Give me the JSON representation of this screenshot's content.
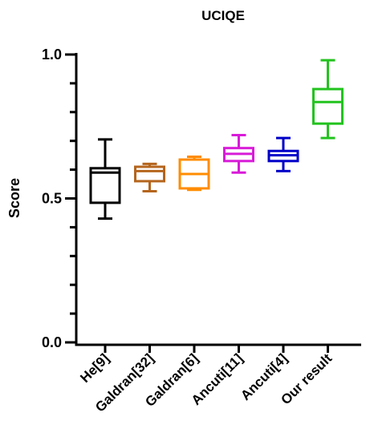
{
  "chart_data": {
    "type": "boxplot",
    "title": "UCIQE",
    "ylabel": "Score",
    "xlabel": "",
    "ylim": [
      0.0,
      1.0
    ],
    "yticks": [
      {
        "value": 0.0,
        "label": "0.0"
      },
      {
        "value": 0.5,
        "label": "0.5"
      },
      {
        "value": 1.0,
        "label": "1.0"
      }
    ],
    "y_minor_step": 0.1,
    "series": [
      {
        "category": "He[9]",
        "color": "#000000",
        "min": 0.43,
        "q1": 0.485,
        "median": 0.59,
        "q3": 0.605,
        "max": 0.705
      },
      {
        "category": "Galdran[32]",
        "color": "#b5651d",
        "min": 0.525,
        "q1": 0.56,
        "median": 0.595,
        "q3": 0.61,
        "max": 0.62
      },
      {
        "category": "Galdran[6]",
        "color": "#ff8c00",
        "min": 0.53,
        "q1": 0.535,
        "median": 0.585,
        "q3": 0.635,
        "max": 0.645
      },
      {
        "category": "Ancuti[11]",
        "color": "#d81bd8",
        "min": 0.59,
        "q1": 0.63,
        "median": 0.655,
        "q3": 0.675,
        "max": 0.72
      },
      {
        "category": "Ancuti[4]",
        "color": "#0000c8",
        "min": 0.595,
        "q1": 0.63,
        "median": 0.65,
        "q3": 0.665,
        "max": 0.71
      },
      {
        "category": "Our result",
        "color": "#22c31e",
        "min": 0.71,
        "q1": 0.76,
        "median": 0.835,
        "q3": 0.88,
        "max": 0.98
      }
    ]
  }
}
